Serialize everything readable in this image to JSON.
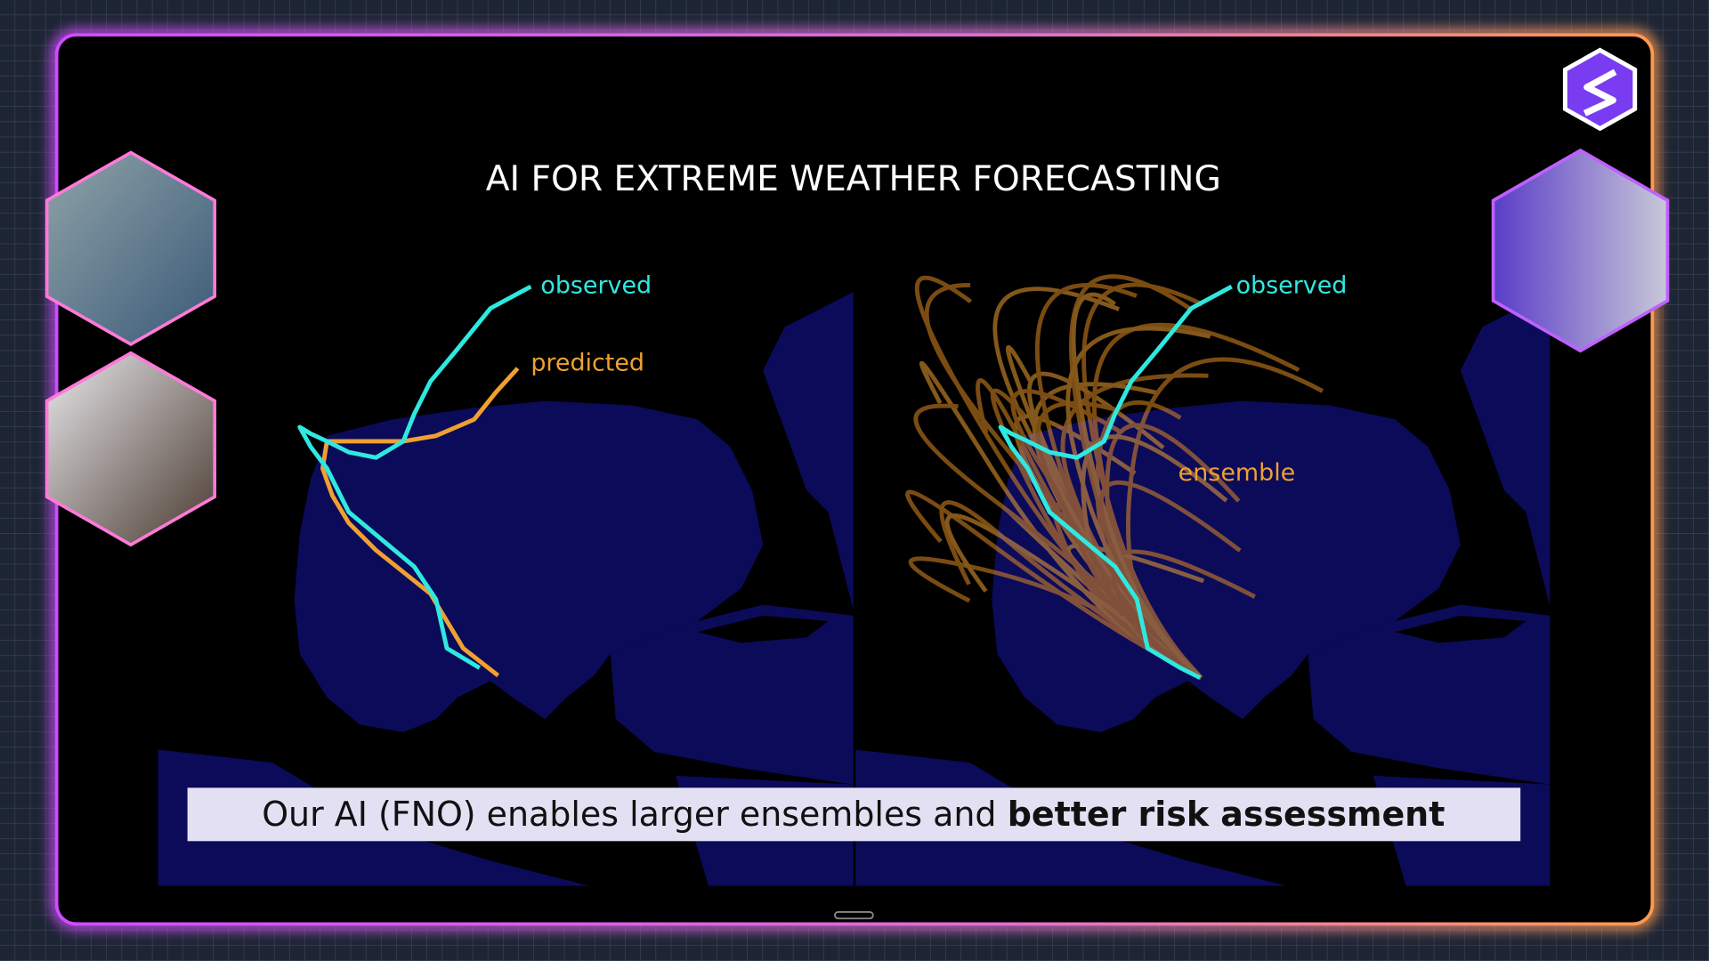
{
  "slide": {
    "title": "AI FOR EXTREME WEATHER FORECASTING",
    "left_map": {
      "observed_label": "observed",
      "predicted_label": "predicted"
    },
    "right_map": {
      "observed_label": "observed",
      "ensemble_label": "ensemble"
    }
  },
  "caption": {
    "text": "Our AI (FNO) enables larger ensembles and",
    "emphasis": "better risk assessment"
  }
}
